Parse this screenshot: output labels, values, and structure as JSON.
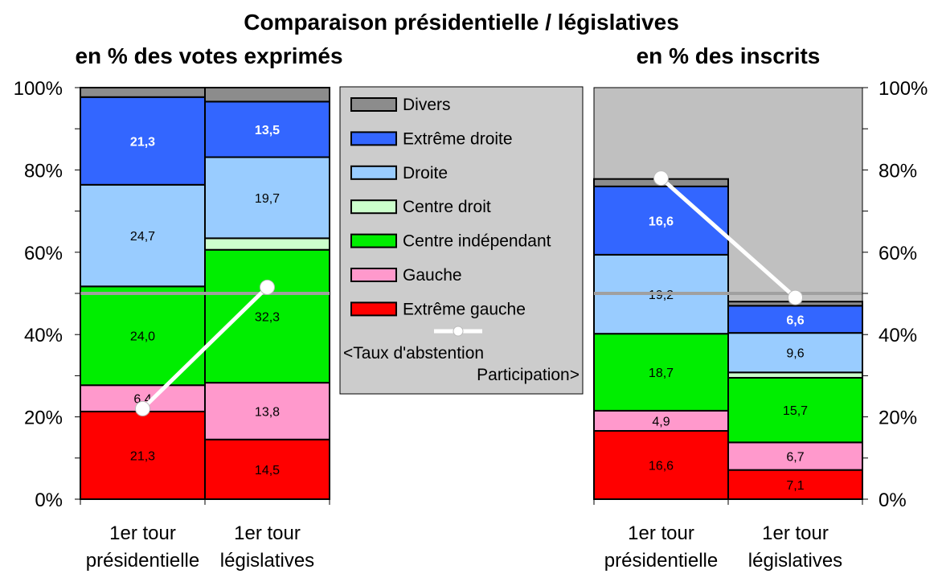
{
  "chart_data": {
    "type": "bar",
    "title": "Comparaison présidentielle / législatives",
    "categories": [
      "1er tour présidentielle",
      "1er tour législatives"
    ],
    "category_lines": [
      [
        "1er tour",
        "présidentielle"
      ],
      [
        "1er tour",
        "législatives"
      ]
    ],
    "ylim": [
      0,
      100
    ],
    "y_ticks": [
      "0%",
      "20%",
      "40%",
      "60%",
      "80%",
      "100%"
    ],
    "reference_line": 50,
    "legend": {
      "items": [
        {
          "key": "divers",
          "label": "Divers",
          "color": "#8c8c8c"
        },
        {
          "key": "extreme_droite",
          "label": "Extrême droite",
          "color": "#3366ff"
        },
        {
          "key": "droite",
          "label": "Droite",
          "color": "#99ccff"
        },
        {
          "key": "centre_droit",
          "label": "Centre droit",
          "color": "#ccffcc"
        },
        {
          "key": "centre_independant",
          "label": "Centre indépendant",
          "color": "#00ee00"
        },
        {
          "key": "gauche",
          "label": "Gauche",
          "color": "#ff99cc"
        },
        {
          "key": "extreme_gauche",
          "label": "Extrême gauche",
          "color": "#ff0000"
        }
      ],
      "line_label_1": "<Taux d'abstention",
      "line_label_2": "Participation>"
    },
    "panels": [
      {
        "subtitle": "en % des votes exprimés",
        "background": "#ffffff",
        "line_values": [
          22,
          51.5
        ],
        "series": [
          {
            "key": "extreme_gauche",
            "values": [
              21.3,
              14.5
            ],
            "labels": [
              "21,3",
              "14,5"
            ],
            "label_style": "normal"
          },
          {
            "key": "gauche",
            "values": [
              6.4,
              13.8
            ],
            "labels": [
              "6,4",
              "13,8"
            ],
            "label_style": "normal"
          },
          {
            "key": "centre_independant",
            "values": [
              24.0,
              32.3
            ],
            "labels": [
              "24,0",
              "32,3"
            ],
            "label_style": "normal"
          },
          {
            "key": "centre_droit",
            "values": [
              0,
              2.8
            ],
            "labels": [
              "",
              ""
            ],
            "label_style": "normal"
          },
          {
            "key": "droite",
            "values": [
              24.7,
              19.7
            ],
            "labels": [
              "24,7",
              "19,7"
            ],
            "label_style": "normal"
          },
          {
            "key": "extreme_droite",
            "values": [
              21.3,
              13.5
            ],
            "labels": [
              "21,3",
              "13,5"
            ],
            "label_style": "bold"
          },
          {
            "key": "divers",
            "values": [
              2.3,
              3.4
            ],
            "labels": [
              "",
              ""
            ],
            "label_style": "normal"
          }
        ]
      },
      {
        "subtitle": "en % des inscrits",
        "background": "#c0c0c0",
        "line_values": [
          78,
          49
        ],
        "series": [
          {
            "key": "extreme_gauche",
            "values": [
              16.6,
              7.1
            ],
            "labels": [
              "16,6",
              "7,1"
            ],
            "label_style": "normal"
          },
          {
            "key": "gauche",
            "values": [
              4.9,
              6.7
            ],
            "labels": [
              "4,9",
              "6,7"
            ],
            "label_style": "normal"
          },
          {
            "key": "centre_independant",
            "values": [
              18.7,
              15.7
            ],
            "labels": [
              "18,7",
              "15,7"
            ],
            "label_style": "normal"
          },
          {
            "key": "centre_droit",
            "values": [
              0,
              1.3
            ],
            "labels": [
              "",
              ""
            ],
            "label_style": "normal"
          },
          {
            "key": "droite",
            "values": [
              19.2,
              9.6
            ],
            "labels": [
              "19,2",
              "9,6"
            ],
            "label_style": "normal"
          },
          {
            "key": "extreme_droite",
            "values": [
              16.6,
              6.6
            ],
            "labels": [
              "16,6",
              "6,6"
            ],
            "label_style": "bold"
          },
          {
            "key": "divers",
            "values": [
              1.8,
              1.0
            ],
            "labels": [
              "",
              ""
            ],
            "label_style": "normal"
          }
        ]
      }
    ]
  }
}
